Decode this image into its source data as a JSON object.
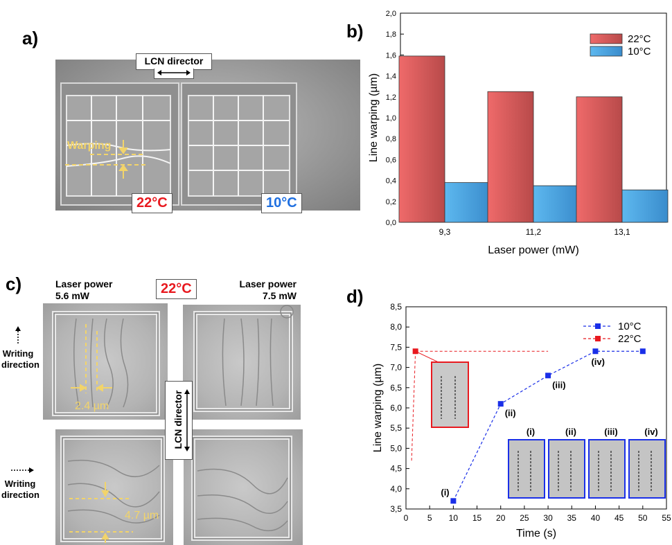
{
  "panels": {
    "a": {
      "label": "a)",
      "director_label": "LCN director",
      "warping_label": "Warping",
      "left_temp": "22°C",
      "right_temp": "10°C",
      "left_temp_color": "#e8191f",
      "right_temp_color": "#1f6fe0"
    },
    "b": {
      "label": "b)"
    },
    "c": {
      "label": "c)",
      "center_temp": "22°C",
      "left_power_line1": "Laser power",
      "left_power_line2": "5.6 mW",
      "right_power_line1": "Laser power",
      "right_power_line2": "7.5 mW",
      "writing_line1": "Writing",
      "writing_line2": "direction",
      "director_label": "LCN director",
      "measure_top": "2.4 µm",
      "measure_bottom": "4.7 µm"
    },
    "d": {
      "label": "d)"
    }
  },
  "chart_data": [
    {
      "id": "b",
      "type": "bar",
      "categories": [
        "9,3",
        "11,2",
        "13,1"
      ],
      "series": [
        {
          "name": "22°C",
          "values": [
            1.59,
            1.25,
            1.2
          ],
          "color": "#ef6a6a"
        },
        {
          "name": "10°C",
          "values": [
            0.38,
            0.35,
            0.31
          ],
          "color": "#5db8ef"
        }
      ],
      "xlabel": "Laser power (mW)",
      "ylabel": "Line warping (µm)",
      "ylim": [
        0,
        2.0
      ],
      "yticks": [
        "0,0",
        "0,2",
        "0,4",
        "0,6",
        "0,8",
        "1,0",
        "1,2",
        "1,4",
        "1,6",
        "1,8",
        "2,0"
      ],
      "legend": "top-right",
      "grid": false
    },
    {
      "id": "d",
      "type": "line",
      "series": [
        {
          "name": "10°C",
          "color": "#1a2fe8",
          "x": [
            10,
            20,
            30,
            40,
            50
          ],
          "y": [
            3.7,
            6.1,
            6.8,
            7.4,
            7.4
          ],
          "point_labels": [
            "(i)",
            "(ii)",
            "(iii)",
            "(iv)",
            ""
          ]
        },
        {
          "name": "22°C",
          "color": "#e8191f",
          "x": [
            2
          ],
          "y": [
            7.4
          ]
        }
      ],
      "xlabel": "Time (s)",
      "ylabel": "Line warping (µm)",
      "xlim": [
        0,
        55
      ],
      "ylim": [
        3.5,
        8.5
      ],
      "xticks": [
        "0",
        "5",
        "10",
        "15",
        "20",
        "25",
        "30",
        "35",
        "40",
        "45",
        "50",
        "55"
      ],
      "yticks": [
        "3,5",
        "4,0",
        "4,5",
        "5,0",
        "5,5",
        "6,0",
        "6,5",
        "7,0",
        "7,5",
        "8,0",
        "8,5"
      ],
      "legend": "top-right",
      "inset_labels": [
        "(i)",
        "(ii)",
        "(iii)",
        "(iv)"
      ]
    }
  ]
}
